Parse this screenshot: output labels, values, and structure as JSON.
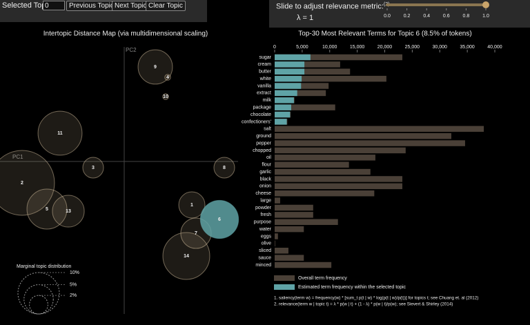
{
  "controls": {
    "selected_topic_label": "Selected Topic:",
    "selected_topic_value": "0",
    "buttons": [
      "Previous Topic",
      "Next Topic",
      "Clear Topic"
    ],
    "slider": {
      "label": "Slide to adjust relevance metric:",
      "footnote_mark": "(2)",
      "lambda_text": "λ = 1",
      "value": 1,
      "lim": [
        0,
        1
      ],
      "ticks": [
        {
          "value": 0,
          "label": "0.0"
        },
        {
          "value": 0.2,
          "label": "0.2"
        },
        {
          "value": 0.4,
          "label": "0.4"
        },
        {
          "value": 0.6,
          "label": "0.6"
        },
        {
          "value": 0.8,
          "label": "0.8"
        },
        {
          "value": 1,
          "label": "1.0"
        }
      ]
    }
  },
  "chart_data": [
    {
      "type": "bubble",
      "title": "Intertopic Distance Map (via multidimensional scaling)",
      "x_label": "PC1",
      "y_label": "PC2",
      "xlim": [
        -180,
        165
      ],
      "ylim": [
        -221,
        194
      ],
      "labels": [
        "1",
        "2",
        "3",
        "4",
        "5",
        "6",
        "7",
        "8",
        "9",
        "10",
        "11",
        "13",
        "14"
      ],
      "x": [
        98,
        -148,
        -45,
        63,
        -112,
        138,
        104,
        145,
        45,
        60,
        -93,
        -81,
        90
      ],
      "y": [
        -63,
        -31,
        -9,
        122,
        -69,
        -84,
        -104,
        -9,
        137,
        94,
        41,
        -72,
        -137
      ],
      "sizes": [
        4,
        24.5,
        2.5,
        0.2,
        9.3,
        8.5,
        5.4,
        2.5,
        6.9,
        0.2,
        11.3,
        5.9,
        12.8
      ],
      "selected": "6",
      "color": "#c8b496",
      "highlight_color": "#5fa3a6",
      "size_legend": {
        "title": "Marginal topic distribution",
        "ticks": [
          {
            "value": 2,
            "label": "2%"
          },
          {
            "value": 5,
            "label": "5%"
          },
          {
            "value": 10,
            "label": "10%"
          }
        ]
      }
    },
    {
      "type": "bar",
      "orientation": "horizontal",
      "title": "Top-30 Most Relevant Terms for Topic 6 (8.5% of tokens)",
      "categories": [
        "sugar",
        "cream",
        "butter",
        "white",
        "vanilla",
        "extract",
        "milk",
        "package",
        "chocolate",
        "confectioners'",
        "salt",
        "ground",
        "pepper",
        "chopped",
        "oil",
        "flour",
        "garlic",
        "black",
        "onion",
        "cheese",
        "large",
        "powder",
        "fresh",
        "purpose",
        "water",
        "eggs",
        "olive",
        "sliced",
        "sauce",
        "minced"
      ],
      "series": [
        {
          "name": "Overall term frequency",
          "color": "#4a4037",
          "values": [
            23200,
            11900,
            13700,
            20300,
            9800,
            9300,
            3600,
            11000,
            2900,
            2300,
            38000,
            32100,
            34600,
            23800,
            18300,
            13500,
            17400,
            23200,
            23200,
            18100,
            1000,
            7000,
            7000,
            11500,
            5300,
            600,
            100,
            2500,
            5300,
            10300
          ]
        },
        {
          "name": "Estimated term frequency within the selected topic",
          "color": "#5fa3a6",
          "values": [
            6500,
            5400,
            5400,
            4900,
            4800,
            4100,
            3500,
            3000,
            2800,
            2200,
            0,
            0,
            0,
            0,
            0,
            0,
            0,
            0,
            0,
            0,
            0,
            0,
            0,
            0,
            0,
            0,
            0,
            0,
            0,
            0
          ]
        }
      ],
      "xlim": [
        0,
        40000
      ],
      "xticks": [
        0,
        {
          "value": 5000,
          "label": "5,000"
        },
        {
          "value": 10000,
          "label": "10,000"
        },
        {
          "value": 15000,
          "label": "15,000"
        },
        {
          "value": 20000,
          "label": "20,000"
        },
        {
          "value": 25000,
          "label": "25,000"
        },
        {
          "value": 30000,
          "label": "30,000"
        },
        {
          "value": 35000,
          "label": "35,000"
        },
        {
          "value": 40000,
          "label": "40,000"
        }
      ],
      "notes": [
        "1. saliency(term w) = frequency(w) * [sum_t p(t | w) * log(p(t | w)/p(t))] for topics t; see Chuang et. al (2012)",
        "2. relevance(term w | topic t) = λ * p(w | t) + (1 - λ) * p(w | t)/p(w); see Sievert & Shirley (2014)"
      ]
    }
  ]
}
